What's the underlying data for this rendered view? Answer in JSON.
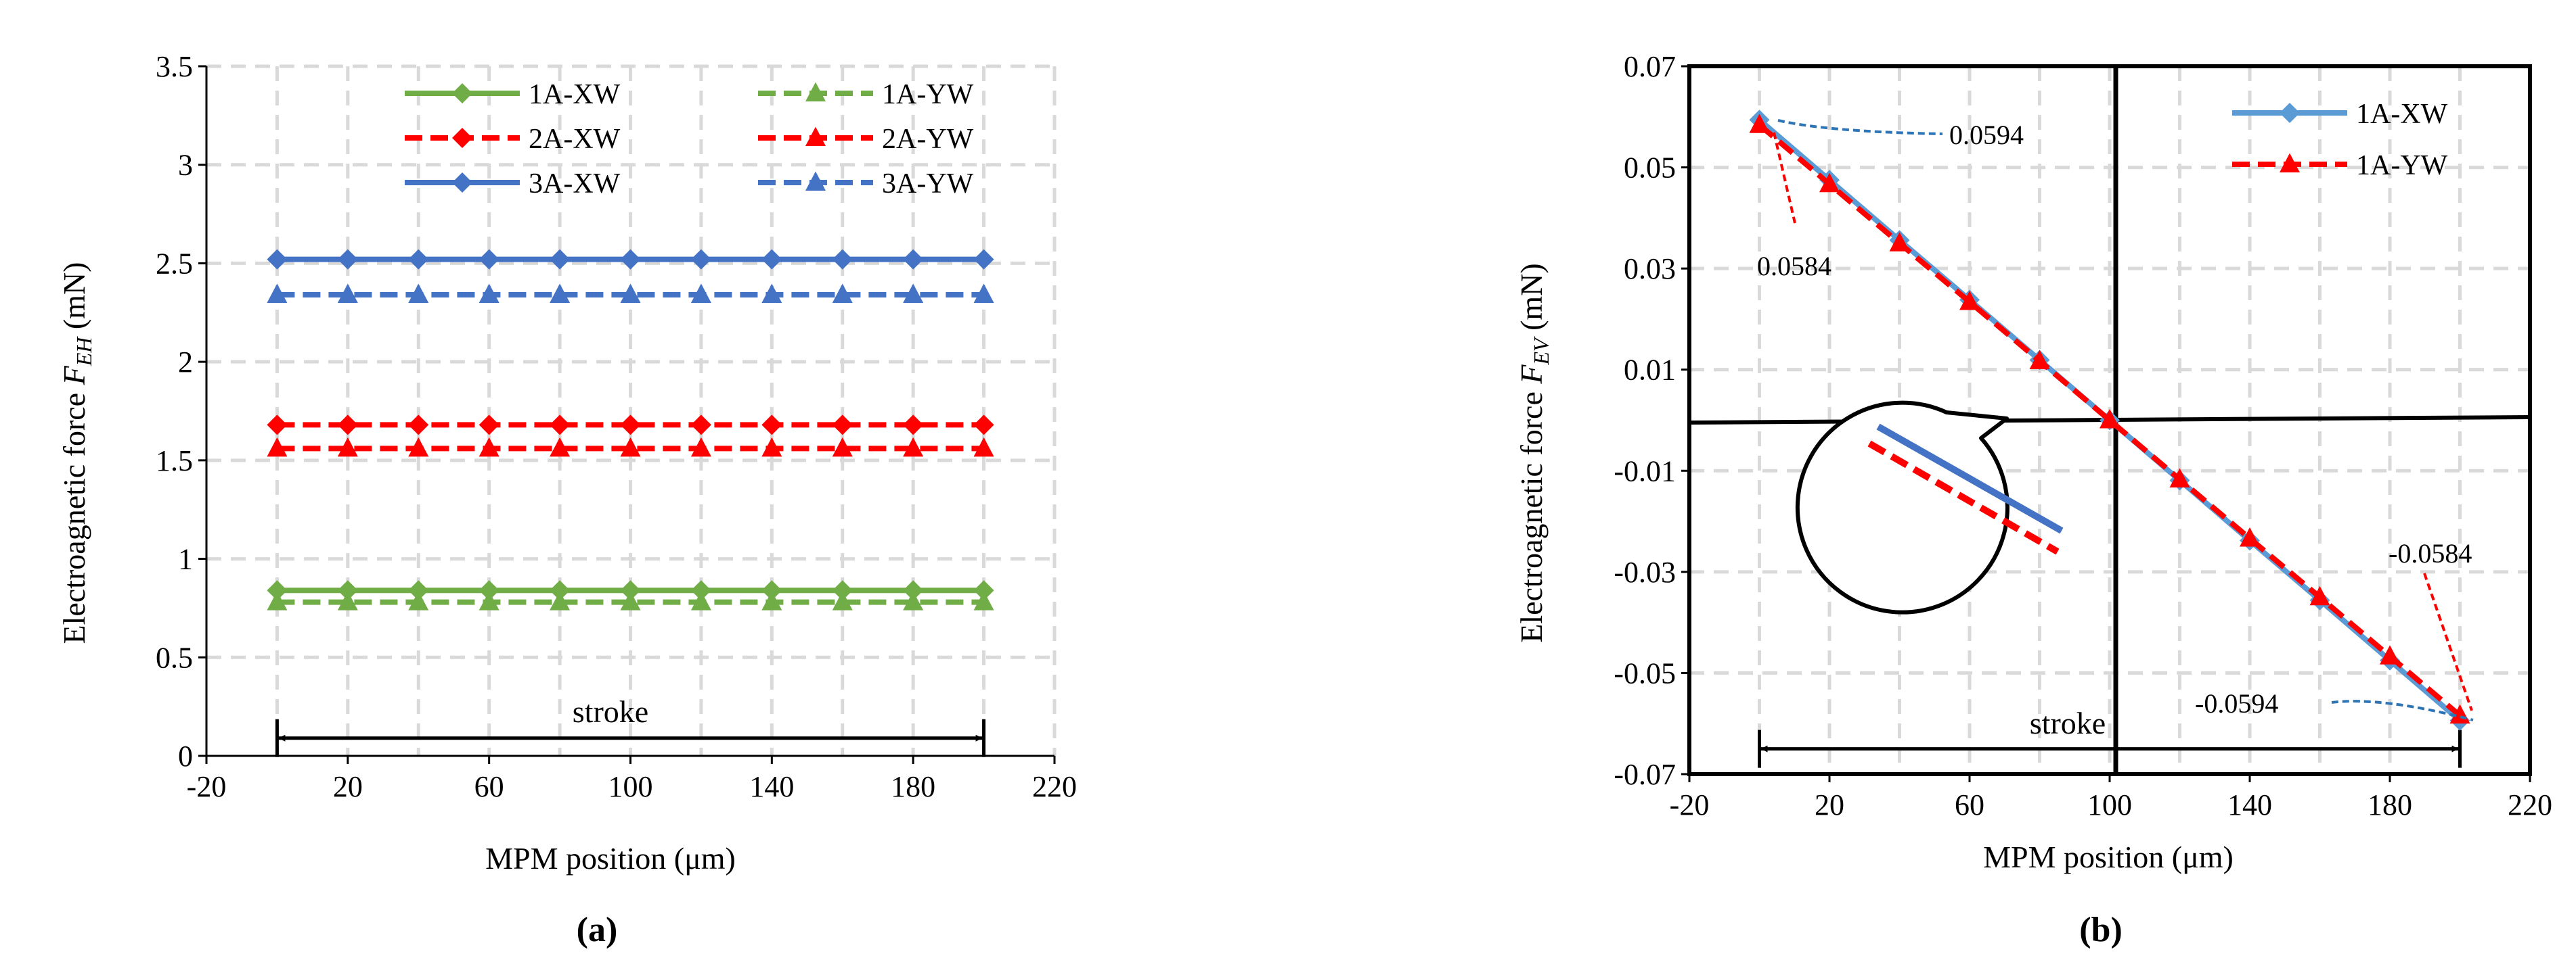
{
  "chart_data": [
    {
      "type": "line",
      "panel_label": "(a)",
      "xlabel": "MPM position  (μm)",
      "ylabel_main": "Electroagnetic force ",
      "ylabel_symbol": "F",
      "ylabel_sub": "EH",
      "ylabel_unit": " (mN)",
      "xlim": [
        -20,
        220
      ],
      "ylim": [
        0,
        3.5
      ],
      "xticks": [
        -20,
        20,
        60,
        100,
        140,
        180,
        220
      ],
      "xtick_labels": [
        "-20",
        "20",
        "60",
        "100",
        "140",
        "180",
        "220"
      ],
      "yticks": [
        0,
        0.5,
        1,
        1.5,
        2,
        2.5,
        3,
        3.5
      ],
      "ytick_labels": [
        "0",
        "0.5",
        "1",
        "1.5",
        "2",
        "2.5",
        "3",
        "3.5"
      ],
      "grid_x": [
        0,
        20,
        40,
        60,
        80,
        100,
        120,
        140,
        160,
        180,
        200,
        220
      ],
      "x": [
        0,
        20,
        40,
        60,
        80,
        100,
        120,
        140,
        160,
        180,
        200
      ],
      "series": [
        {
          "name": "1A-XW",
          "color": "#70AD47",
          "dash": "solid",
          "marker": "diamond",
          "values": [
            0.84,
            0.84,
            0.84,
            0.84,
            0.84,
            0.84,
            0.84,
            0.84,
            0.84,
            0.84,
            0.84
          ]
        },
        {
          "name": "1A-YW",
          "color": "#70AD47",
          "dash": "dashed",
          "marker": "triangle",
          "values": [
            0.78,
            0.78,
            0.78,
            0.78,
            0.78,
            0.78,
            0.78,
            0.78,
            0.78,
            0.78,
            0.78
          ]
        },
        {
          "name": "2A-XW",
          "color": "#FF0000",
          "dash": "dashed",
          "marker": "diamond",
          "values": [
            1.68,
            1.68,
            1.68,
            1.68,
            1.68,
            1.68,
            1.68,
            1.68,
            1.68,
            1.68,
            1.68
          ]
        },
        {
          "name": "2A-YW",
          "color": "#FF0000",
          "dash": "dashed",
          "marker": "triangle",
          "values": [
            1.56,
            1.56,
            1.56,
            1.56,
            1.56,
            1.56,
            1.56,
            1.56,
            1.56,
            1.56,
            1.56
          ]
        },
        {
          "name": "3A-XW",
          "color": "#4472C4",
          "dash": "solid",
          "marker": "diamond",
          "values": [
            2.52,
            2.52,
            2.52,
            2.52,
            2.52,
            2.52,
            2.52,
            2.52,
            2.52,
            2.52,
            2.52
          ]
        },
        {
          "name": "3A-YW",
          "color": "#4472C4",
          "dash": "dashed",
          "marker": "triangle",
          "values": [
            2.34,
            2.34,
            2.34,
            2.34,
            2.34,
            2.34,
            2.34,
            2.34,
            2.34,
            2.34,
            2.34
          ]
        }
      ],
      "legend_layout": "two columns, upper area",
      "stroke": {
        "label": "stroke",
        "x_start": 0,
        "x_end": 200,
        "y": 0.09
      }
    },
    {
      "type": "line",
      "panel_label": "(b)",
      "xlabel": "MPM position (μm)",
      "ylabel_main": "Electroagnetic force ",
      "ylabel_symbol": "F",
      "ylabel_sub": "EV",
      "ylabel_unit": " (mN)",
      "xlim": [
        -20,
        220
      ],
      "ylim": [
        -0.07,
        0.07
      ],
      "xticks": [
        -20,
        20,
        60,
        100,
        140,
        180,
        220
      ],
      "xtick_labels": [
        "-20",
        "20",
        "60",
        "100",
        "140",
        "180",
        "220"
      ],
      "yticks": [
        -0.07,
        -0.05,
        -0.03,
        -0.01,
        0.01,
        0.03,
        0.05,
        0.07
      ],
      "ytick_labels": [
        "-0.07",
        "-0.05",
        "-0.03",
        "-0.01",
        "0.01",
        "0.03",
        "0.05",
        "0.07"
      ],
      "grid_x": [
        0,
        20,
        40,
        60,
        80,
        100,
        120,
        140,
        160,
        180,
        200,
        220
      ],
      "x": [
        0,
        20,
        40,
        60,
        80,
        100,
        120,
        140,
        160,
        180,
        200
      ],
      "series": [
        {
          "name": "1A-XW",
          "color": "#5B9BD5",
          "dash": "solid",
          "marker": "diamond",
          "values": [
            0.0594,
            0.0475,
            0.0356,
            0.0238,
            0.0119,
            0.0,
            -0.0119,
            -0.0238,
            -0.0356,
            -0.0475,
            -0.0594
          ]
        },
        {
          "name": "1A-YW",
          "color": "#FF0000",
          "dash": "dashed",
          "marker": "triangle",
          "values": [
            0.0584,
            0.0467,
            0.035,
            0.0234,
            0.0117,
            0.0,
            -0.0117,
            -0.0234,
            -0.035,
            -0.0467,
            -0.0584
          ]
        }
      ],
      "legend_layout": "top-right",
      "annotations": [
        "0.0594",
        "0.0584",
        "-0.0584",
        "-0.0594"
      ],
      "stroke": {
        "label": "stroke",
        "x_start": 0,
        "x_end": 200,
        "y": -0.065
      }
    }
  ]
}
